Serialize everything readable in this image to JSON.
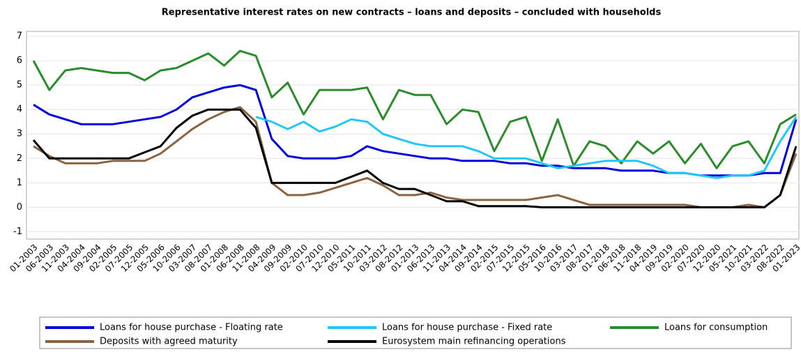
{
  "chart_data": {
    "type": "line",
    "title": "Representative interest rates on new contracts – loans and deposits – concluded with households",
    "categories": [
      "01-2003",
      "06-2003",
      "11-2003",
      "04-2004",
      "09-2004",
      "02-2005",
      "07-2005",
      "12-2005",
      "05-2006",
      "10-2006",
      "03-2007",
      "08-2007",
      "01-2008",
      "06-2008",
      "11-2008",
      "04-2009",
      "09-2009",
      "02-2010",
      "07-2010",
      "12-2010",
      "05-2011",
      "10-2011",
      "03-2012",
      "08-2012",
      "01-2013",
      "06-2013",
      "11-2013",
      "04-2014",
      "09-2014",
      "02-2015",
      "07-2015",
      "12-2015",
      "05-2016",
      "10-2016",
      "03-2017",
      "08-2017",
      "01-2018",
      "06-2018",
      "11-2018",
      "04-2019",
      "09-2019",
      "02-2020",
      "07-2020",
      "12-2020",
      "05-2021",
      "10-2021",
      "03-2022",
      "08-2022",
      "01-2023"
    ],
    "series": [
      {
        "name": "Loans for house purchase - Floating rate",
        "color": "#0000e0",
        "values": [
          4.2,
          3.8,
          3.6,
          3.4,
          3.4,
          3.4,
          3.5,
          3.6,
          3.7,
          4.0,
          4.5,
          4.7,
          4.9,
          5.0,
          4.8,
          2.8,
          2.1,
          2.0,
          2.0,
          2.0,
          2.1,
          2.5,
          2.3,
          2.2,
          2.1,
          2.0,
          2.0,
          1.9,
          1.9,
          1.9,
          1.8,
          1.8,
          1.7,
          1.7,
          1.6,
          1.6,
          1.6,
          1.5,
          1.5,
          1.5,
          1.4,
          1.4,
          1.3,
          1.3,
          1.3,
          1.3,
          1.4,
          1.4,
          3.6
        ]
      },
      {
        "name": "Loans for house purchase - Fixed rate",
        "color": "#1ec8ff",
        "values": [
          null,
          null,
          null,
          null,
          null,
          null,
          null,
          null,
          null,
          null,
          null,
          null,
          null,
          null,
          3.7,
          3.5,
          3.2,
          3.5,
          3.1,
          3.3,
          3.6,
          3.5,
          3.0,
          2.8,
          2.6,
          2.5,
          2.5,
          2.5,
          2.3,
          2.0,
          2.0,
          2.0,
          1.8,
          1.6,
          1.7,
          1.8,
          1.9,
          1.9,
          1.9,
          1.7,
          1.4,
          1.4,
          1.3,
          1.2,
          1.3,
          1.3,
          1.5,
          2.7,
          3.7
        ]
      },
      {
        "name": "Loans for consumption",
        "color": "#2a8c2a",
        "values": [
          6.0,
          4.8,
          5.6,
          5.7,
          5.6,
          5.5,
          5.5,
          5.2,
          5.6,
          5.7,
          6.0,
          6.3,
          5.8,
          6.4,
          6.2,
          4.5,
          5.1,
          3.8,
          4.8,
          4.8,
          4.8,
          4.9,
          3.6,
          4.8,
          4.6,
          4.6,
          3.4,
          4.0,
          3.9,
          2.3,
          3.5,
          3.7,
          1.9,
          3.6,
          1.7,
          2.7,
          2.5,
          1.8,
          2.7,
          2.2,
          2.7,
          1.8,
          2.6,
          1.6,
          2.5,
          2.7,
          1.8,
          3.4,
          3.8
        ]
      },
      {
        "name": "Deposits with agreed maturity",
        "color": "#8b6340",
        "values": [
          2.5,
          2.1,
          1.8,
          1.8,
          1.8,
          1.9,
          1.9,
          1.9,
          2.2,
          2.7,
          3.2,
          3.6,
          3.9,
          4.1,
          3.5,
          1.0,
          0.5,
          0.5,
          0.6,
          0.8,
          1.0,
          1.2,
          0.9,
          0.5,
          0.5,
          0.6,
          0.4,
          0.3,
          0.3,
          0.3,
          0.3,
          0.3,
          0.4,
          0.5,
          0.3,
          0.1,
          0.1,
          0.1,
          0.1,
          0.1,
          0.1,
          0.1,
          0.0,
          0.0,
          0.0,
          0.1,
          0.0,
          0.5,
          2.2
        ]
      },
      {
        "name": "Eurosystem main refinancing operations",
        "color": "#000000",
        "values": [
          2.75,
          2.0,
          2.0,
          2.0,
          2.0,
          2.0,
          2.0,
          2.25,
          2.5,
          3.25,
          3.75,
          4.0,
          4.0,
          4.0,
          3.25,
          1.0,
          1.0,
          1.0,
          1.0,
          1.0,
          1.25,
          1.5,
          1.0,
          0.75,
          0.75,
          0.5,
          0.25,
          0.25,
          0.05,
          0.05,
          0.05,
          0.05,
          0.0,
          0.0,
          0.0,
          0.0,
          0.0,
          0.0,
          0.0,
          0.0,
          0.0,
          0.0,
          0.0,
          0.0,
          0.0,
          0.0,
          0.0,
          0.5,
          2.5
        ]
      }
    ],
    "ylim": [
      -1.3,
      7.2
    ],
    "yticks": [
      -1,
      0,
      1,
      2,
      3,
      4,
      5,
      6,
      7
    ],
    "grid": true,
    "legend": "bottom"
  }
}
